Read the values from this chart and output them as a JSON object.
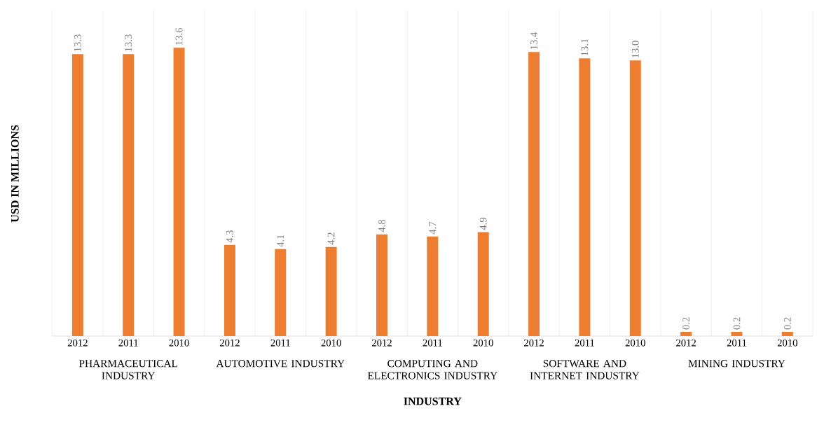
{
  "chart_data": {
    "type": "bar",
    "xlabel": "INDUSTRY",
    "ylabel": "USD IN MILLIONS",
    "categories": [
      "2012",
      "2011",
      "2010",
      "2012",
      "2011",
      "2010",
      "2012",
      "2011",
      "2010",
      "2012",
      "2011",
      "2010",
      "2012",
      "2011",
      "2010"
    ],
    "values": [
      13.3,
      13.3,
      13.6,
      4.3,
      4.1,
      4.2,
      4.8,
      4.7,
      4.9,
      13.4,
      13.1,
      13.0,
      0.2,
      0.2,
      0.2
    ],
    "value_labels": [
      "13.3",
      "13.3",
      "13.6",
      "4.3",
      "4.1",
      "4.2",
      "4.8",
      "4.7",
      "4.9",
      "13.4",
      "13.1",
      "13.0",
      "0.2",
      "0.2",
      "0.2"
    ],
    "color": "#ed7d31",
    "grid": "x",
    "annotations": [
      "PHARMACEUTICAL INDUSTRY",
      "AUTOMOTIVE INDUSTRY",
      "COMPUTING AND ELECTRONICS INDUSTRY",
      "SOFTWARE AND INTERNET INDUSTRY",
      "MINING INDUSTRY"
    ]
  }
}
